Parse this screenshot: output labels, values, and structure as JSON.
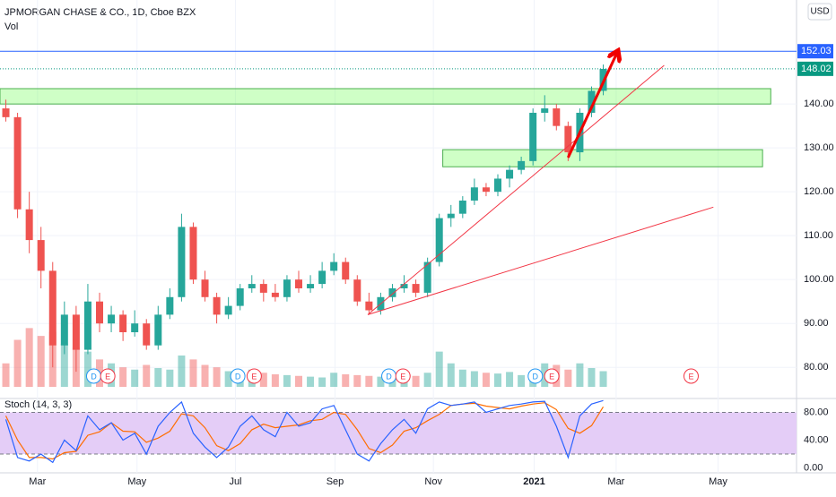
{
  "chart_data": {
    "type": "candlestick",
    "title": "JPMORGAN CHASE & CO., 1D, Cboe BZX",
    "volume_label": "Vol",
    "currency": "USD",
    "up_color": "#26a69a",
    "down_color": "#ef5350",
    "open": [
      139,
      137,
      116,
      109,
      102,
      85,
      92,
      84,
      95,
      90,
      92,
      88,
      90,
      85,
      92,
      96,
      112,
      100,
      96,
      92,
      94,
      98,
      99,
      97,
      96,
      100,
      98,
      99,
      102,
      104,
      100,
      95,
      93,
      96,
      98,
      99,
      97,
      104,
      114,
      115,
      118,
      121,
      120,
      123,
      125,
      127,
      138,
      139,
      135,
      129,
      138,
      143
    ],
    "high": [
      141,
      138,
      120,
      112,
      104,
      95,
      94,
      99,
      97,
      94,
      93,
      93,
      91,
      94,
      98,
      115,
      113,
      102,
      97,
      96,
      99,
      101,
      100,
      99,
      101,
      102,
      101,
      104,
      106,
      105,
      101,
      97,
      97,
      99,
      101,
      100,
      105,
      115,
      117,
      119,
      123,
      122,
      124,
      126,
      128,
      139,
      142,
      140,
      136,
      139,
      144,
      149
    ],
    "low": [
      136,
      114,
      106,
      98,
      80,
      83,
      79,
      83,
      88,
      88,
      86,
      87,
      84,
      84,
      91,
      95,
      99,
      95,
      90,
      91,
      93,
      97,
      95,
      95,
      95,
      97,
      97,
      98,
      101,
      99,
      94,
      92,
      92,
      95,
      97,
      96,
      96,
      103,
      112,
      114,
      117,
      119,
      119,
      121,
      124,
      126,
      136,
      134,
      127,
      127,
      137,
      142
    ],
    "close": [
      137,
      116,
      109,
      102,
      85,
      92,
      84,
      95,
      90,
      92,
      88,
      90,
      85,
      92,
      96,
      112,
      100,
      96,
      92,
      94,
      98,
      99,
      97,
      96,
      100,
      98,
      99,
      102,
      104,
      100,
      95,
      93,
      96,
      98,
      99,
      97,
      104,
      114,
      115,
      118,
      121,
      120,
      123,
      125,
      127,
      138,
      139,
      135,
      129,
      138,
      143,
      148
    ],
    "volume": [
      30,
      60,
      75,
      65,
      70,
      55,
      50,
      45,
      35,
      30,
      25,
      22,
      28,
      24,
      22,
      40,
      35,
      28,
      25,
      20,
      18,
      22,
      18,
      16,
      15,
      14,
      13,
      12,
      18,
      16,
      15,
      14,
      13,
      13,
      15,
      14,
      18,
      45,
      30,
      22,
      20,
      18,
      17,
      19,
      15,
      14,
      30,
      28,
      22,
      30,
      24,
      20
    ],
    "volume_lim": [
      0,
      160
    ],
    "xlim": [
      -0.5,
      67.5
    ],
    "xticks": [
      {
        "value": 2.7,
        "label": "Mar"
      },
      {
        "value": 11.2,
        "label": "May"
      },
      {
        "value": 19.6,
        "label": "Jul"
      },
      {
        "value": 28.1,
        "label": "Sep"
      },
      {
        "value": 36.5,
        "label": "Nov"
      },
      {
        "value": 45.1,
        "label": "2021"
      },
      {
        "value": 52.1,
        "label": "Mar"
      },
      {
        "value": 60.8,
        "label": "May"
      }
    ],
    "ylim": [
      72.9,
      163.7
    ],
    "yticks": [
      {
        "value": 80,
        "label": "80.00"
      },
      {
        "value": 90,
        "label": "90.00"
      },
      {
        "value": 100,
        "label": "100.00"
      },
      {
        "value": 110,
        "label": "110.00"
      },
      {
        "value": 120,
        "label": "120.00"
      },
      {
        "value": 130,
        "label": "130.00"
      },
      {
        "value": 140,
        "label": "140.00"
      }
    ],
    "levels": [
      {
        "value": 152.03,
        "color": "#2962ff"
      },
      {
        "value": 148.02,
        "color": "#089981"
      }
    ],
    "zones": [
      {
        "x": [
          -0.5,
          65.3
        ],
        "y": [
          140,
          143.5
        ]
      },
      {
        "x": [
          37.3,
          64.6
        ],
        "y": [
          125.7,
          129.6
        ]
      }
    ],
    "trendlines": [
      {
        "x": [
          30.9,
          56.2
        ],
        "y": [
          92,
          148.8
        ],
        "color": "#f23645"
      },
      {
        "x": [
          30.9,
          60.4
        ],
        "y": [
          92,
          116.5
        ],
        "color": "#f23645"
      },
      {
        "x": [
          48.0,
          52.2
        ],
        "y": [
          127.8,
          151.8
        ],
        "color": "#f00000",
        "arrow": true
      }
    ],
    "events": [
      {
        "label": "D",
        "x": 7.5,
        "color": "#2196f3"
      },
      {
        "label": "E",
        "x": 8.7,
        "color": "#f23645"
      },
      {
        "label": "D",
        "x": 19.8,
        "color": "#2196f3"
      },
      {
        "label": "E",
        "x": 21.2,
        "color": "#f23645"
      },
      {
        "label": "D",
        "x": 32.7,
        "color": "#2196f3"
      },
      {
        "label": "E",
        "x": 33.9,
        "color": "#f23645"
      },
      {
        "label": "D",
        "x": 45.2,
        "color": "#2196f3"
      },
      {
        "label": "E",
        "x": 46.6,
        "color": "#f23645"
      },
      {
        "label": "E",
        "x": 58.5,
        "color": "#f23645"
      }
    ],
    "stochastic": {
      "label": "Stoch (14, 3, 3)",
      "k": [
        70,
        15,
        10,
        20,
        8,
        40,
        25,
        75,
        55,
        65,
        40,
        50,
        20,
        60,
        80,
        95,
        50,
        30,
        15,
        30,
        60,
        75,
        55,
        45,
        80,
        60,
        65,
        85,
        90,
        55,
        20,
        10,
        35,
        55,
        70,
        50,
        85,
        95,
        90,
        92,
        95,
        80,
        85,
        90,
        92,
        95,
        96,
        60,
        15,
        75,
        92,
        97
      ],
      "d": [
        75,
        40,
        15,
        15,
        13,
        22,
        24,
        47,
        52,
        65,
        53,
        52,
        37,
        43,
        53,
        78,
        75,
        58,
        32,
        25,
        35,
        55,
        63,
        58,
        60,
        62,
        68,
        70,
        80,
        77,
        55,
        28,
        22,
        33,
        53,
        58,
        68,
        77,
        90,
        92,
        93,
        89,
        87,
        85,
        89,
        92,
        94,
        84,
        57,
        50,
        61,
        88
      ],
      "k_color": "#2962ff",
      "d_color": "#ff6d00",
      "band": [
        20,
        80
      ],
      "band_color": "#e4cdf7",
      "ylim": [
        -7,
        100
      ],
      "yticks": [
        {
          "value": 0,
          "label": "0.00"
        },
        {
          "value": 40,
          "label": "40.00"
        },
        {
          "value": 80,
          "label": "80.00"
        }
      ]
    }
  }
}
